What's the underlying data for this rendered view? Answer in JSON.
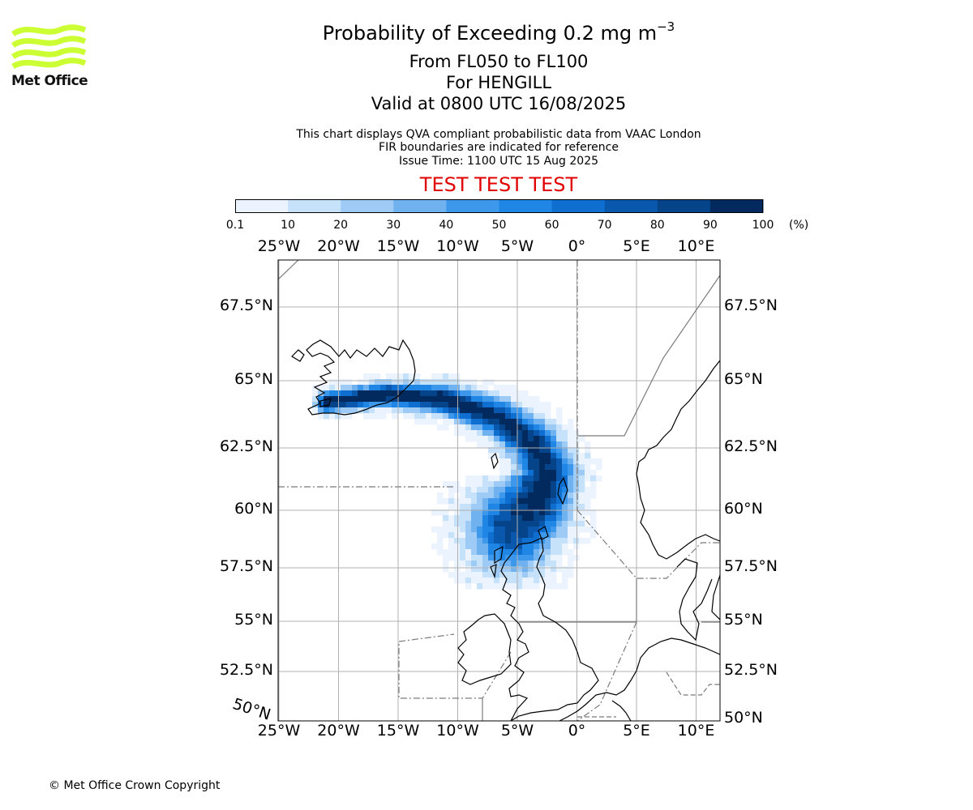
{
  "logo": {
    "name": "met-office-logo",
    "text": "Met Office",
    "color": "#ccff33"
  },
  "header": {
    "title_main": "Probability of Exceeding 0.2 mg m",
    "title_sup": "−3",
    "levels": "From FL050 to FL100",
    "volcano": "For HENGILL",
    "valid": "Valid at 0800 UTC 16/08/2025",
    "info_line1": "This chart displays QVA compliant probabilistic data from VAAC London",
    "info_line2": "FIR boundaries are indicated for reference",
    "info_line3": "Issue Time: 1100 UTC 15 Aug 2025",
    "test_banner": "TEST TEST TEST",
    "test_color": "#e00000"
  },
  "colorbar": {
    "ticks": [
      "0.1",
      "10",
      "20",
      "30",
      "40",
      "50",
      "60",
      "70",
      "80",
      "90",
      "100"
    ],
    "unit": "(%)",
    "colors": [
      "#eaf3fe",
      "#c6e2fb",
      "#9ecbf5",
      "#70b2f0",
      "#3d98ec",
      "#1f86e6",
      "#0f6fd0",
      "#0a58ad",
      "#06448a",
      "#032a5e"
    ]
  },
  "map": {
    "lon_labels": [
      "25°W",
      "20°W",
      "15°W",
      "10°W",
      "5°W",
      "0°",
      "5°E",
      "10°E"
    ],
    "lat_labels_left": [
      "67.5°N",
      "65°N",
      "62.5°N",
      "60°N",
      "57.5°N",
      "55°N",
      "52.5°N"
    ],
    "lat_labels_right": [
      "67.5°N",
      "65°N",
      "62.5°N",
      "60°N",
      "57.5°N",
      "55°N",
      "52.5°N",
      "50°N"
    ],
    "corner_lat_label": "50°N",
    "coastline_color": "#000000",
    "grid_color": "#b0b0b0",
    "fir_color": "#7a7a7a"
  },
  "chart_data": {
    "type": "heatmap",
    "title": "Probability of Exceeding 0.2 mg m−3",
    "value_unit": "%",
    "color_levels": [
      0.1,
      10,
      20,
      30,
      40,
      50,
      60,
      70,
      80,
      90,
      100
    ],
    "lon_range": [
      -25,
      12
    ],
    "lat_range": [
      50,
      69
    ],
    "plume_axis": [
      {
        "lon": -21,
        "lat": 64.2,
        "max_prob": 100
      },
      {
        "lon": -16,
        "lat": 64.5,
        "max_prob": 100
      },
      {
        "lon": -11,
        "lat": 64.3,
        "max_prob": 100
      },
      {
        "lon": -6.5,
        "lat": 63.6,
        "max_prob": 95
      },
      {
        "lon": -3.5,
        "lat": 62.6,
        "max_prob": 95
      },
      {
        "lon": -2.5,
        "lat": 61.5,
        "max_prob": 95
      },
      {
        "lon": -3.5,
        "lat": 60.3,
        "max_prob": 100
      },
      {
        "lon": -5.5,
        "lat": 59.2,
        "max_prob": 85
      }
    ]
  },
  "footer": {
    "copyright": "© Met Office Crown Copyright"
  }
}
